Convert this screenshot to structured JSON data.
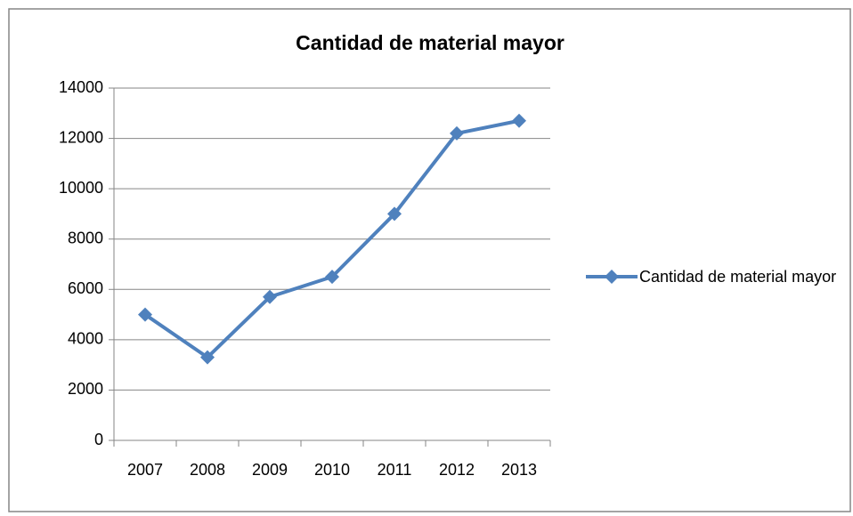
{
  "chart_data": {
    "type": "line",
    "title": "Cantidad de material mayor",
    "categories": [
      "2007",
      "2008",
      "2009",
      "2010",
      "2011",
      "2012",
      "2013"
    ],
    "series": [
      {
        "name": "Cantidad de material mayor",
        "color": "#4f81bd",
        "values": [
          5000,
          3300,
          5700,
          6500,
          9000,
          12200,
          12700
        ]
      }
    ],
    "ylim": [
      0,
      14000
    ],
    "yticks": [
      0,
      2000,
      4000,
      6000,
      8000,
      10000,
      12000,
      14000
    ],
    "grid": true,
    "legend": "right"
  }
}
